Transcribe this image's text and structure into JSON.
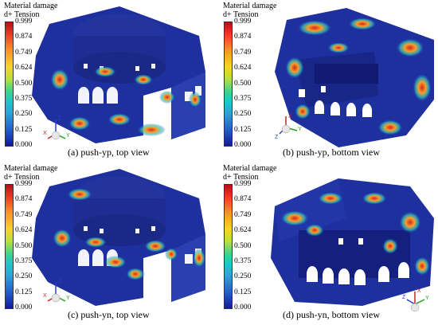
{
  "legend": {
    "title_line1": "Material damage",
    "title_line2": "d+ Tension",
    "ticks": [
      "0.999",
      "0.874",
      "0.749",
      "0.624",
      "0.500",
      "0.375",
      "0.250",
      "0.125",
      "0.000"
    ]
  },
  "panels": [
    {
      "caption": "(a) push-yp, top view",
      "axes": [
        "Z",
        "X",
        "Y"
      ]
    },
    {
      "caption": "(b) push-yp, bottom view",
      "axes": [
        "X",
        "Y",
        "Z"
      ]
    },
    {
      "caption": "(c) push-yn, top view",
      "axes": [
        "Z",
        "X",
        "Y"
      ]
    },
    {
      "caption": "(d) push-yn, bottom view",
      "axes": [
        "X",
        "Z",
        "Y"
      ]
    }
  ],
  "colors": {
    "structure": "#1e2f9e",
    "low": "#14199e",
    "mid": "#2ec8c0",
    "high": "#f6d32b",
    "max": "#d32820"
  }
}
